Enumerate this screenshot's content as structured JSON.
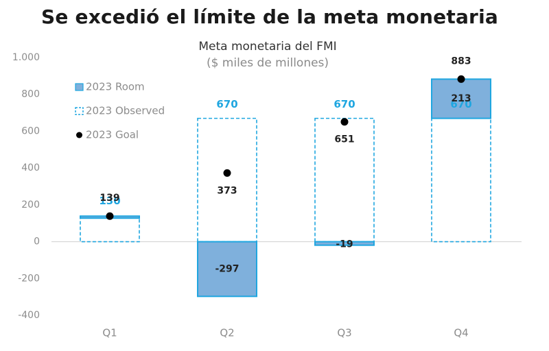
{
  "title": "Se excedió el límite de la meta monetaria",
  "chart_data": {
    "type": "bar",
    "title": "Meta monetaria del FMI",
    "subtitle": "($ miles de millones)",
    "categories": [
      "Q1",
      "Q2",
      "Q3",
      "Q4"
    ],
    "ylim": [
      -400,
      1000
    ],
    "yticks": [
      -400,
      -200,
      0,
      200,
      400,
      600,
      800,
      1000
    ],
    "ytick_labels": [
      "-400",
      "-200",
      "0",
      "200",
      "400",
      "600",
      "800",
      "1.000"
    ],
    "series": [
      {
        "name": "2023 Room",
        "values": [
          9,
          -297,
          -19,
          213
        ],
        "labels": [
          "",
          "-297",
          "-19",
          "213"
        ]
      },
      {
        "name": "2023 Observed",
        "values": [
          130,
          670,
          670,
          670
        ],
        "labels": [
          "130",
          "670",
          "670",
          "670"
        ]
      },
      {
        "name": "2023 Goal",
        "values": [
          139,
          373,
          651,
          883
        ],
        "labels": [
          "139",
          "373",
          "651",
          "883"
        ]
      }
    ],
    "legend": [
      "2023 Room",
      "2023 Observed",
      "2023 Goal"
    ],
    "legend_position": "top-left",
    "colors": {
      "room_fill": "#7fb0dc",
      "room_stroke": "#1fa6e0",
      "observed": "#1fa6e0",
      "goal": "#000000",
      "text_dark": "#222222",
      "axis_text": "#8c8c8c",
      "zero_line": "#cfcfcf"
    }
  }
}
